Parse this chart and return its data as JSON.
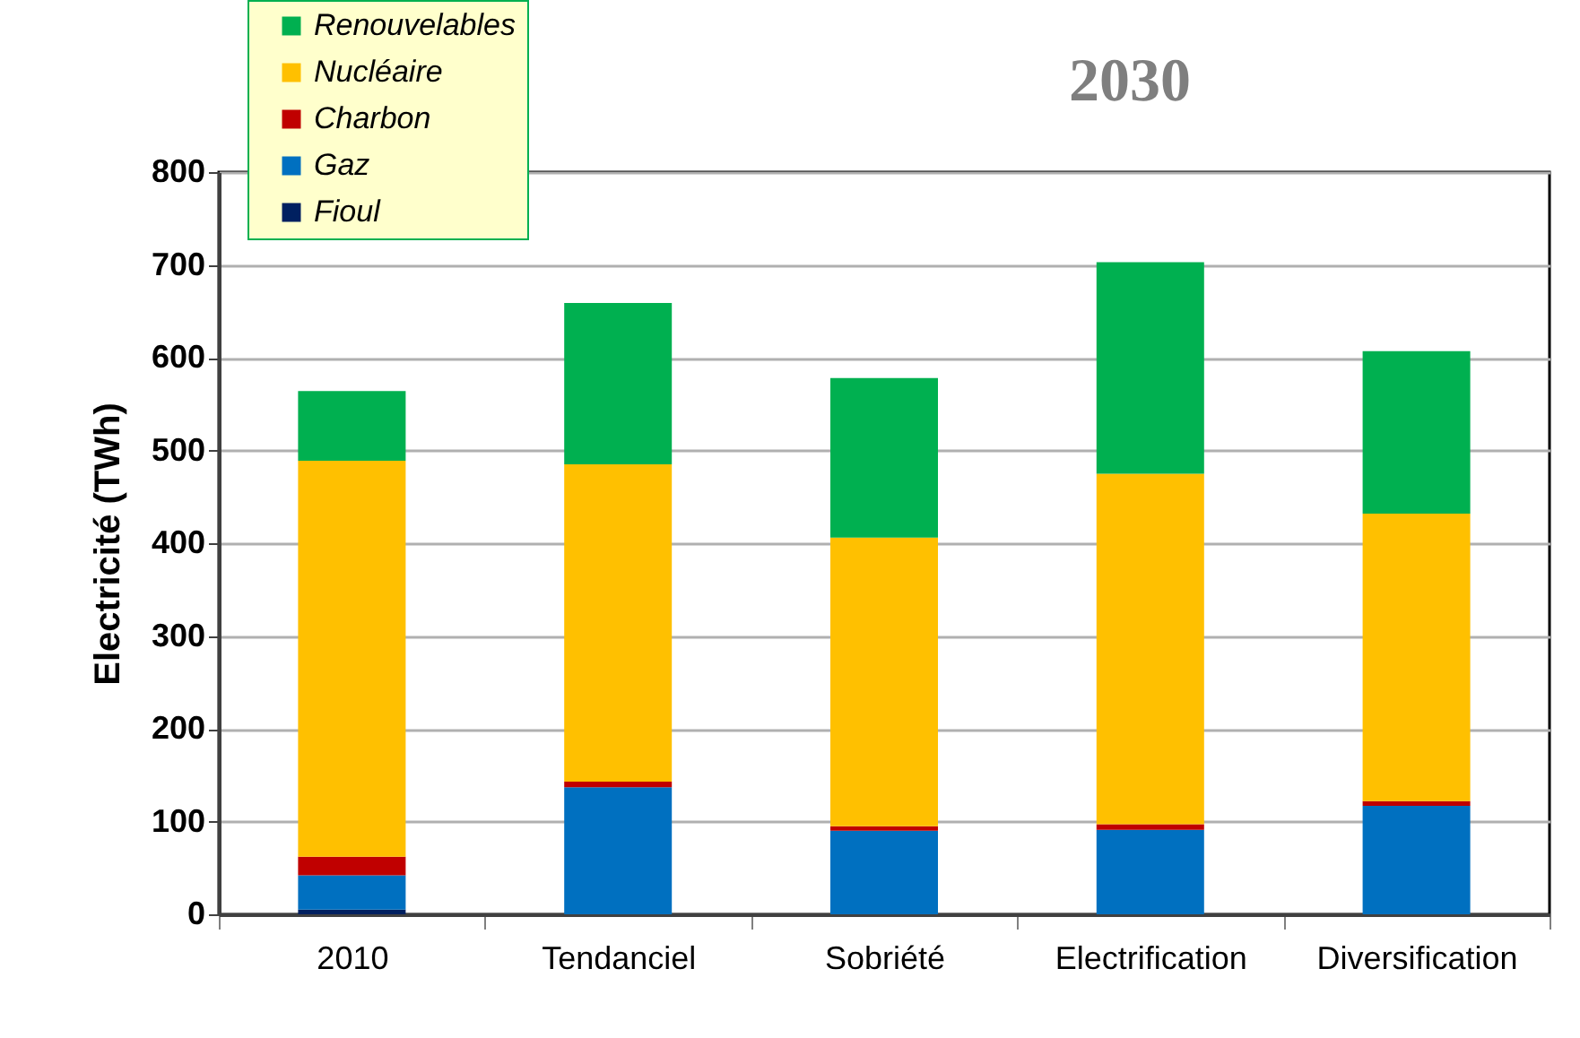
{
  "chart_data": {
    "type": "bar",
    "stacked": true,
    "title": "2030",
    "ylabel": "Electricité  (TWh)",
    "categories": [
      "2010",
      "Tendanciel",
      "Sobriété",
      "Electrification",
      "Diversification"
    ],
    "series": [
      {
        "name": "Fioul",
        "color": "#002060",
        "values": [
          5,
          0,
          0,
          0,
          0
        ]
      },
      {
        "name": "Gaz",
        "color": "#0070c0",
        "values": [
          37,
          137,
          90,
          91,
          117
        ]
      },
      {
        "name": "Charbon",
        "color": "#c00000",
        "values": [
          20,
          6,
          5,
          6,
          5
        ]
      },
      {
        "name": "Nucléaire",
        "color": "#ffc000",
        "values": [
          427,
          342,
          311,
          378,
          310
        ]
      },
      {
        "name": "Renouvelables",
        "color": "#00b050",
        "values": [
          75,
          174,
          172,
          228,
          175
        ]
      }
    ],
    "ylim": [
      0,
      800
    ],
    "yticks": [
      0,
      100,
      200,
      300,
      400,
      500,
      600,
      700,
      800
    ],
    "grid": "y",
    "legend": "top left"
  }
}
